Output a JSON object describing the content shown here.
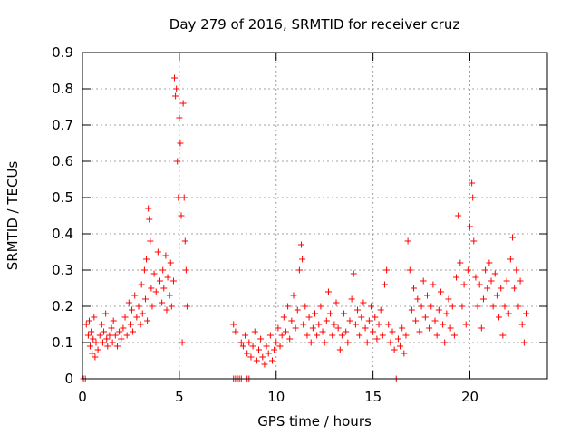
{
  "chart_data": {
    "type": "scatter",
    "title": "Day 279 of 2016, SRMTID for receiver cruz",
    "xlabel": "GPS time / hours",
    "ylabel": "SRMTID / TECUs",
    "xlim": [
      0,
      24
    ],
    "ylim": [
      0,
      0.9
    ],
    "xticks": [
      0,
      5,
      10,
      15,
      20
    ],
    "xtick_labels": [
      "0",
      "5",
      "10",
      "15",
      "20"
    ],
    "yticks": [
      0,
      0.1,
      0.2,
      0.3,
      0.4,
      0.5,
      0.6,
      0.7,
      0.8,
      0.9
    ],
    "ytick_labels": [
      "0",
      "0.1",
      "0.2",
      "0.3",
      "0.4",
      "0.5",
      "0.6",
      "0.7",
      "0.8",
      "0.9"
    ],
    "grid": true,
    "marker": "+",
    "color": "#ff0000",
    "series": [
      {
        "name": "SRMTID",
        "points": [
          [
            0.05,
            0.0
          ],
          [
            0.15,
            0.0
          ],
          [
            0.2,
            0.15
          ],
          [
            0.3,
            0.12
          ],
          [
            0.35,
            0.16
          ],
          [
            0.4,
            0.09
          ],
          [
            0.45,
            0.13
          ],
          [
            0.5,
            0.07
          ],
          [
            0.55,
            0.11
          ],
          [
            0.6,
            0.17
          ],
          [
            0.65,
            0.06
          ],
          [
            0.7,
            0.1
          ],
          [
            0.8,
            0.08
          ],
          [
            0.9,
            0.12
          ],
          [
            1.0,
            0.15
          ],
          [
            1.05,
            0.1
          ],
          [
            1.1,
            0.13
          ],
          [
            1.2,
            0.18
          ],
          [
            1.25,
            0.11
          ],
          [
            1.3,
            0.09
          ],
          [
            1.4,
            0.12
          ],
          [
            1.5,
            0.14
          ],
          [
            1.55,
            0.1
          ],
          [
            1.6,
            0.16
          ],
          [
            1.7,
            0.12
          ],
          [
            1.8,
            0.09
          ],
          [
            1.9,
            0.13
          ],
          [
            2.0,
            0.11
          ],
          [
            2.1,
            0.14
          ],
          [
            2.2,
            0.17
          ],
          [
            2.3,
            0.12
          ],
          [
            2.4,
            0.21
          ],
          [
            2.5,
            0.15
          ],
          [
            2.55,
            0.19
          ],
          [
            2.6,
            0.13
          ],
          [
            2.7,
            0.23
          ],
          [
            2.8,
            0.17
          ],
          [
            2.9,
            0.2
          ],
          [
            3.0,
            0.15
          ],
          [
            3.05,
            0.26
          ],
          [
            3.1,
            0.18
          ],
          [
            3.2,
            0.3
          ],
          [
            3.25,
            0.22
          ],
          [
            3.3,
            0.33
          ],
          [
            3.35,
            0.16
          ],
          [
            3.4,
            0.47
          ],
          [
            3.45,
            0.44
          ],
          [
            3.5,
            0.38
          ],
          [
            3.55,
            0.25
          ],
          [
            3.6,
            0.2
          ],
          [
            3.7,
            0.29
          ],
          [
            3.8,
            0.24
          ],
          [
            3.9,
            0.35
          ],
          [
            4.0,
            0.27
          ],
          [
            4.1,
            0.21
          ],
          [
            4.15,
            0.3
          ],
          [
            4.2,
            0.25
          ],
          [
            4.3,
            0.34
          ],
          [
            4.35,
            0.19
          ],
          [
            4.4,
            0.28
          ],
          [
            4.5,
            0.23
          ],
          [
            4.55,
            0.32
          ],
          [
            4.6,
            0.2
          ],
          [
            4.7,
            0.27
          ],
          [
            4.75,
            0.83
          ],
          [
            4.8,
            0.78
          ],
          [
            4.85,
            0.8
          ],
          [
            4.9,
            0.6
          ],
          [
            4.95,
            0.5
          ],
          [
            5.0,
            0.72
          ],
          [
            5.05,
            0.65
          ],
          [
            5.1,
            0.45
          ],
          [
            5.15,
            0.1
          ],
          [
            5.2,
            0.76
          ],
          [
            5.25,
            0.5
          ],
          [
            5.3,
            0.38
          ],
          [
            5.35,
            0.3
          ],
          [
            5.4,
            0.2
          ],
          [
            7.8,
            0.0
          ],
          [
            7.9,
            0.0
          ],
          [
            8.0,
            0.0
          ],
          [
            8.1,
            0.0
          ],
          [
            8.2,
            0.0
          ],
          [
            8.5,
            0.0
          ],
          [
            8.6,
            0.0
          ],
          [
            7.8,
            0.15
          ],
          [
            7.9,
            0.13
          ],
          [
            8.2,
            0.1
          ],
          [
            8.3,
            0.09
          ],
          [
            8.4,
            0.12
          ],
          [
            8.5,
            0.07
          ],
          [
            8.6,
            0.1
          ],
          [
            8.7,
            0.06
          ],
          [
            8.8,
            0.09
          ],
          [
            8.9,
            0.13
          ],
          [
            9.0,
            0.05
          ],
          [
            9.1,
            0.08
          ],
          [
            9.2,
            0.11
          ],
          [
            9.3,
            0.06
          ],
          [
            9.4,
            0.04
          ],
          [
            9.5,
            0.09
          ],
          [
            9.6,
            0.07
          ],
          [
            9.7,
            0.12
          ],
          [
            9.8,
            0.05
          ],
          [
            9.9,
            0.08
          ],
          [
            10.0,
            0.1
          ],
          [
            10.1,
            0.14
          ],
          [
            10.2,
            0.09
          ],
          [
            10.3,
            0.12
          ],
          [
            10.4,
            0.17
          ],
          [
            10.5,
            0.13
          ],
          [
            10.6,
            0.2
          ],
          [
            10.7,
            0.11
          ],
          [
            10.8,
            0.16
          ],
          [
            10.9,
            0.23
          ],
          [
            11.0,
            0.14
          ],
          [
            11.1,
            0.19
          ],
          [
            11.2,
            0.3
          ],
          [
            11.3,
            0.37
          ],
          [
            11.35,
            0.33
          ],
          [
            11.4,
            0.15
          ],
          [
            11.5,
            0.2
          ],
          [
            11.6,
            0.12
          ],
          [
            11.7,
            0.17
          ],
          [
            11.8,
            0.1
          ],
          [
            11.9,
            0.14
          ],
          [
            12.0,
            0.18
          ],
          [
            12.1,
            0.12
          ],
          [
            12.2,
            0.15
          ],
          [
            12.3,
            0.2
          ],
          [
            12.4,
            0.13
          ],
          [
            12.5,
            0.1
          ],
          [
            12.6,
            0.16
          ],
          [
            12.7,
            0.24
          ],
          [
            12.8,
            0.18
          ],
          [
            12.9,
            0.12
          ],
          [
            13.0,
            0.15
          ],
          [
            13.1,
            0.21
          ],
          [
            13.2,
            0.14
          ],
          [
            13.3,
            0.08
          ],
          [
            13.4,
            0.12
          ],
          [
            13.5,
            0.18
          ],
          [
            13.6,
            0.13
          ],
          [
            13.7,
            0.1
          ],
          [
            13.8,
            0.16
          ],
          [
            13.9,
            0.22
          ],
          [
            14.0,
            0.29
          ],
          [
            14.1,
            0.15
          ],
          [
            14.2,
            0.19
          ],
          [
            14.3,
            0.12
          ],
          [
            14.4,
            0.17
          ],
          [
            14.5,
            0.21
          ],
          [
            14.6,
            0.14
          ],
          [
            14.7,
            0.1
          ],
          [
            14.8,
            0.16
          ],
          [
            14.9,
            0.2
          ],
          [
            15.0,
            0.13
          ],
          [
            15.1,
            0.17
          ],
          [
            15.2,
            0.11
          ],
          [
            15.3,
            0.15
          ],
          [
            15.4,
            0.19
          ],
          [
            15.5,
            0.12
          ],
          [
            15.6,
            0.26
          ],
          [
            15.7,
            0.3
          ],
          [
            15.8,
            0.15
          ],
          [
            15.9,
            0.1
          ],
          [
            16.0,
            0.13
          ],
          [
            16.1,
            0.08
          ],
          [
            16.2,
            0.0
          ],
          [
            16.3,
            0.11
          ],
          [
            16.4,
            0.09
          ],
          [
            16.5,
            0.14
          ],
          [
            16.6,
            0.07
          ],
          [
            16.7,
            0.12
          ],
          [
            16.8,
            0.38
          ],
          [
            16.9,
            0.3
          ],
          [
            17.0,
            0.19
          ],
          [
            17.1,
            0.25
          ],
          [
            17.2,
            0.16
          ],
          [
            17.3,
            0.22
          ],
          [
            17.4,
            0.13
          ],
          [
            17.5,
            0.2
          ],
          [
            17.6,
            0.27
          ],
          [
            17.7,
            0.17
          ],
          [
            17.8,
            0.23
          ],
          [
            17.9,
            0.14
          ],
          [
            18.0,
            0.2
          ],
          [
            18.1,
            0.26
          ],
          [
            18.2,
            0.16
          ],
          [
            18.3,
            0.12
          ],
          [
            18.4,
            0.19
          ],
          [
            18.5,
            0.24
          ],
          [
            18.6,
            0.15
          ],
          [
            18.7,
            0.1
          ],
          [
            18.8,
            0.18
          ],
          [
            18.9,
            0.22
          ],
          [
            19.0,
            0.14
          ],
          [
            19.1,
            0.2
          ],
          [
            19.2,
            0.12
          ],
          [
            19.3,
            0.28
          ],
          [
            19.4,
            0.45
          ],
          [
            19.5,
            0.32
          ],
          [
            19.6,
            0.2
          ],
          [
            19.7,
            0.26
          ],
          [
            19.8,
            0.15
          ],
          [
            19.9,
            0.3
          ],
          [
            20.0,
            0.42
          ],
          [
            20.1,
            0.54
          ],
          [
            20.15,
            0.5
          ],
          [
            20.2,
            0.38
          ],
          [
            20.3,
            0.28
          ],
          [
            20.4,
            0.2
          ],
          [
            20.5,
            0.26
          ],
          [
            20.6,
            0.14
          ],
          [
            20.7,
            0.22
          ],
          [
            20.8,
            0.3
          ],
          [
            20.9,
            0.25
          ],
          [
            21.0,
            0.32
          ],
          [
            21.1,
            0.27
          ],
          [
            21.2,
            0.2
          ],
          [
            21.3,
            0.29
          ],
          [
            21.4,
            0.23
          ],
          [
            21.5,
            0.17
          ],
          [
            21.6,
            0.25
          ],
          [
            21.7,
            0.12
          ],
          [
            21.8,
            0.2
          ],
          [
            21.9,
            0.27
          ],
          [
            22.0,
            0.18
          ],
          [
            22.1,
            0.33
          ],
          [
            22.2,
            0.39
          ],
          [
            22.3,
            0.25
          ],
          [
            22.4,
            0.3
          ],
          [
            22.5,
            0.2
          ],
          [
            22.6,
            0.27
          ],
          [
            22.7,
            0.15
          ],
          [
            22.8,
            0.1
          ],
          [
            22.9,
            0.18
          ]
        ]
      }
    ]
  }
}
